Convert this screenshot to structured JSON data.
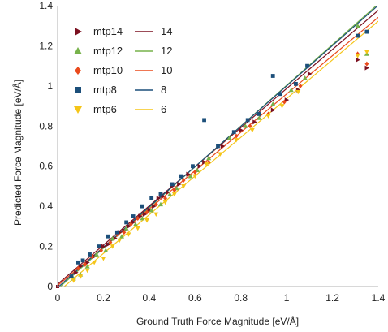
{
  "chart_data": {
    "type": "scatter",
    "title": "",
    "xlabel": "Ground Truth Force Magnitude [eV/Å]",
    "ylabel": "Predicted Force Magnitude [eV/Å]",
    "xlim": [
      0,
      1.4
    ],
    "ylim": [
      0,
      1.4
    ],
    "xticks": [
      "0",
      "0.2",
      "0.4",
      "0.6",
      "0.8",
      "1",
      "1.2",
      "1.4"
    ],
    "yticks": [
      "0",
      "0.2",
      "0.4",
      "0.6",
      "0.8",
      "1",
      "1.2",
      "1.4"
    ],
    "grid": false,
    "legend_position": "top-left",
    "scatter_series": [
      {
        "name": "mtp14",
        "marker": "triangle-right",
        "color": "#7b1020",
        "points": [
          [
            0.08,
            0.07
          ],
          [
            0.1,
            0.1
          ],
          [
            0.13,
            0.12
          ],
          [
            0.16,
            0.15
          ],
          [
            0.2,
            0.2
          ],
          [
            0.22,
            0.21
          ],
          [
            0.25,
            0.24
          ],
          [
            0.27,
            0.27
          ],
          [
            0.29,
            0.28
          ],
          [
            0.31,
            0.3
          ],
          [
            0.33,
            0.32
          ],
          [
            0.36,
            0.35
          ],
          [
            0.38,
            0.36
          ],
          [
            0.4,
            0.38
          ],
          [
            0.42,
            0.4
          ],
          [
            0.44,
            0.44
          ],
          [
            0.46,
            0.45
          ],
          [
            0.48,
            0.47
          ],
          [
            0.5,
            0.5
          ],
          [
            0.53,
            0.51
          ],
          [
            0.57,
            0.56
          ],
          [
            0.62,
            0.6
          ],
          [
            0.64,
            0.62
          ],
          [
            0.72,
            0.7
          ],
          [
            0.8,
            0.78
          ],
          [
            0.86,
            0.82
          ],
          [
            0.94,
            0.88
          ],
          [
            1.0,
            0.93
          ],
          [
            1.05,
            0.98
          ],
          [
            1.1,
            1.06
          ],
          [
            1.31,
            1.13
          ],
          [
            1.35,
            1.09
          ]
        ]
      },
      {
        "name": "mtp12",
        "marker": "triangle-up",
        "color": "#77b24a",
        "points": [
          [
            0.07,
            0.04
          ],
          [
            0.1,
            0.06
          ],
          [
            0.13,
            0.1
          ],
          [
            0.17,
            0.16
          ],
          [
            0.21,
            0.18
          ],
          [
            0.24,
            0.24
          ],
          [
            0.28,
            0.25
          ],
          [
            0.3,
            0.29
          ],
          [
            0.34,
            0.31
          ],
          [
            0.37,
            0.34
          ],
          [
            0.41,
            0.38
          ],
          [
            0.45,
            0.41
          ],
          [
            0.49,
            0.46
          ],
          [
            0.52,
            0.49
          ],
          [
            0.58,
            0.55
          ],
          [
            0.61,
            0.58
          ],
          [
            0.66,
            0.64
          ],
          [
            0.75,
            0.74
          ],
          [
            0.82,
            0.8
          ],
          [
            0.88,
            0.84
          ],
          [
            0.94,
            0.91
          ],
          [
            1.02,
            0.98
          ],
          [
            1.08,
            1.04
          ],
          [
            1.31,
            1.3
          ],
          [
            1.35,
            1.16
          ]
        ]
      },
      {
        "name": "mtp10",
        "marker": "diamond",
        "color": "#ea4a1c",
        "points": [
          [
            0.09,
            0.09
          ],
          [
            0.12,
            0.11
          ],
          [
            0.15,
            0.15
          ],
          [
            0.19,
            0.18
          ],
          [
            0.23,
            0.22
          ],
          [
            0.26,
            0.26
          ],
          [
            0.29,
            0.27
          ],
          [
            0.32,
            0.31
          ],
          [
            0.35,
            0.34
          ],
          [
            0.39,
            0.37
          ],
          [
            0.43,
            0.41
          ],
          [
            0.47,
            0.44
          ],
          [
            0.51,
            0.48
          ],
          [
            0.55,
            0.53
          ],
          [
            0.6,
            0.57
          ],
          [
            0.66,
            0.62
          ],
          [
            0.78,
            0.75
          ],
          [
            0.84,
            0.8
          ],
          [
            0.92,
            0.86
          ],
          [
            0.99,
            0.92
          ],
          [
            1.06,
            1.0
          ],
          [
            1.31,
            1.16
          ],
          [
            1.35,
            1.11
          ]
        ]
      },
      {
        "name": "mtp8",
        "marker": "square",
        "color": "#1c4f7a",
        "points": [
          [
            0.06,
            0.05
          ],
          [
            0.09,
            0.12
          ],
          [
            0.11,
            0.13
          ],
          [
            0.14,
            0.16
          ],
          [
            0.18,
            0.2
          ],
          [
            0.22,
            0.25
          ],
          [
            0.26,
            0.27
          ],
          [
            0.3,
            0.32
          ],
          [
            0.33,
            0.35
          ],
          [
            0.37,
            0.4
          ],
          [
            0.41,
            0.44
          ],
          [
            0.45,
            0.46
          ],
          [
            0.5,
            0.51
          ],
          [
            0.54,
            0.55
          ],
          [
            0.59,
            0.6
          ],
          [
            0.64,
            0.83
          ],
          [
            0.7,
            0.7
          ],
          [
            0.77,
            0.77
          ],
          [
            0.83,
            0.83
          ],
          [
            0.88,
            0.86
          ],
          [
            0.94,
            1.05
          ],
          [
            0.97,
            0.96
          ],
          [
            1.04,
            1.01
          ],
          [
            1.09,
            1.1
          ],
          [
            1.31,
            1.25
          ],
          [
            1.35,
            1.27
          ]
        ]
      },
      {
        "name": "mtp6",
        "marker": "triangle-down",
        "color": "#f5c518",
        "points": [
          [
            0.07,
            0.03
          ],
          [
            0.1,
            0.05
          ],
          [
            0.13,
            0.08
          ],
          [
            0.16,
            0.12
          ],
          [
            0.2,
            0.14
          ],
          [
            0.24,
            0.2
          ],
          [
            0.27,
            0.23
          ],
          [
            0.31,
            0.26
          ],
          [
            0.35,
            0.29
          ],
          [
            0.39,
            0.33
          ],
          [
            0.43,
            0.36
          ],
          [
            0.47,
            0.42
          ],
          [
            0.51,
            0.46
          ],
          [
            0.55,
            0.5
          ],
          [
            0.6,
            0.55
          ],
          [
            0.65,
            0.61
          ],
          [
            0.71,
            0.66
          ],
          [
            0.78,
            0.73
          ],
          [
            0.85,
            0.78
          ],
          [
            0.92,
            0.85
          ],
          [
            0.98,
            0.9
          ],
          [
            1.05,
            0.97
          ],
          [
            1.31,
            1.15
          ],
          [
            1.35,
            1.17
          ]
        ]
      }
    ],
    "line_series": [
      {
        "name": "14",
        "color": "#7b1020",
        "slope": 0.975,
        "intercept": 0.012
      },
      {
        "name": "12",
        "color": "#77b24a",
        "slope": 1.015,
        "intercept": -0.012
      },
      {
        "name": "10",
        "color": "#ea4a1c",
        "slope": 0.955,
        "intercept": 0.005
      },
      {
        "name": "8",
        "color": "#1c4f7a",
        "slope": 1.005,
        "intercept": -0.005
      },
      {
        "name": "6",
        "color": "#f5c518",
        "slope": 0.965,
        "intercept": -0.028
      }
    ]
  }
}
